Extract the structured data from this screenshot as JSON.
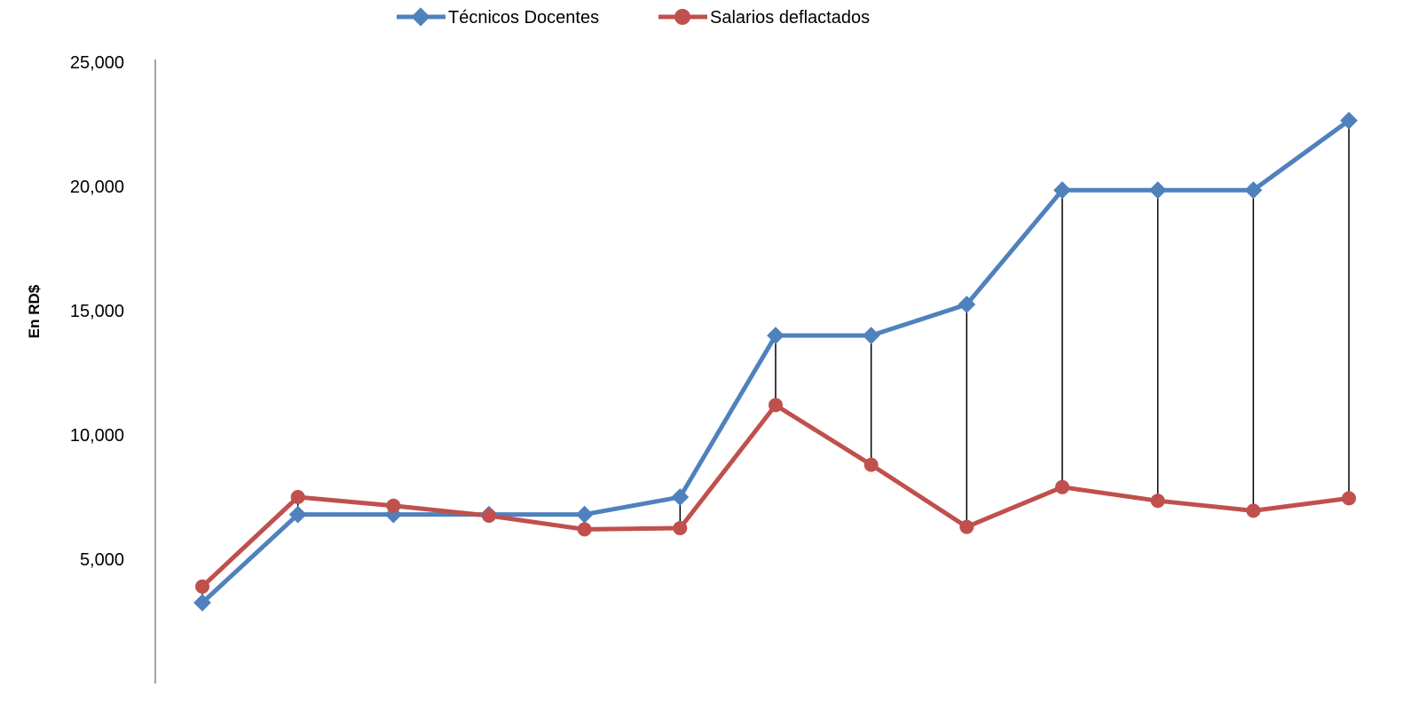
{
  "chart_data": {
    "type": "line",
    "title": "",
    "xlabel": "",
    "ylabel": "En RD$",
    "ylim": [
      0,
      25000
    ],
    "yticks": [
      5000,
      10000,
      15000,
      20000,
      25000
    ],
    "ytick_labels": [
      "5,000",
      "10,000",
      "15,000",
      "20,000",
      "25,000"
    ],
    "grid": false,
    "legend_position": "top",
    "x": [
      1,
      2,
      3,
      4,
      5,
      6,
      7,
      8,
      9,
      10,
      11,
      12,
      13
    ],
    "series": [
      {
        "name": "Técnicos Docentes",
        "color": "#4f81bd",
        "marker": "diamond",
        "values": [
          3250,
          6800,
          6800,
          6800,
          6800,
          7500,
          14000,
          14000,
          15250,
          19850,
          19850,
          19850,
          22650
        ]
      },
      {
        "name": "Salarios deflactados",
        "color": "#c0504d",
        "marker": "circle",
        "values": [
          3900,
          7500,
          7150,
          6750,
          6200,
          6250,
          11200,
          8800,
          6300,
          7900,
          7350,
          6950,
          7450
        ]
      }
    ],
    "drop_lines": true,
    "drop_line_color": "#000000"
  }
}
